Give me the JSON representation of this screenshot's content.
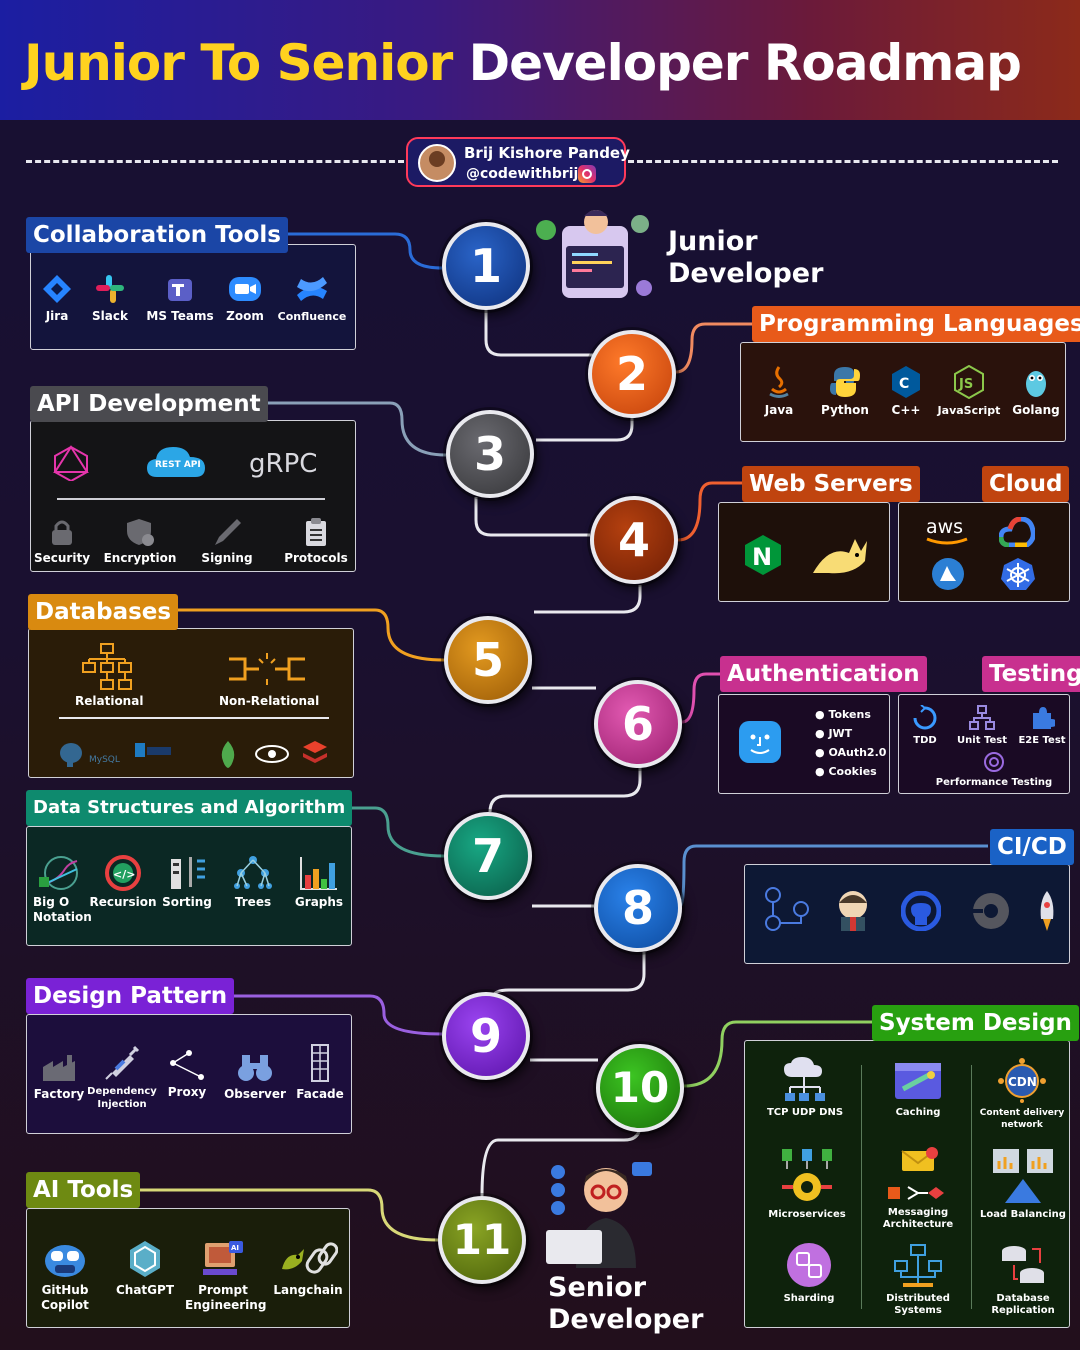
{
  "title": {
    "part1": "Junior To Senior",
    "part2": "Developer Roadmap"
  },
  "author": {
    "name": "Brij Kishore Pandey",
    "handle": "@codewithbrij"
  },
  "roles": {
    "junior": [
      "Junior",
      "Developer"
    ],
    "senior": [
      "Senior",
      "Developer"
    ]
  },
  "steps": [
    "1",
    "2",
    "3",
    "4",
    "5",
    "6",
    "7",
    "8",
    "9",
    "10",
    "11"
  ],
  "colors": {
    "collab": "#1b46a6",
    "prog": "#e85a1a",
    "api": "#4a4a4f",
    "web": "#c0440f",
    "db": "#d98a10",
    "auth": "#c8308f",
    "dsa": "#0e8a6e",
    "cicd": "#1a62c6",
    "design": "#7a22d6",
    "system": "#28a010",
    "ai": "#6e8a12"
  },
  "sections": {
    "collaboration": {
      "title": "Collaboration Tools",
      "items": [
        "Jira",
        "Slack",
        "MS Teams",
        "Zoom",
        "Confluence"
      ]
    },
    "programming": {
      "title": "Programming Languages",
      "items": [
        "Java",
        "Python",
        "C++",
        "JavaScript",
        "Golang"
      ],
      "icon_text": {
        "cpp": "C",
        "js": "JS"
      }
    },
    "api": {
      "title": "API Development",
      "top": [
        "REST API",
        "gRPC"
      ],
      "items": [
        "Security",
        "Encryption",
        "Signing",
        "Protocols"
      ]
    },
    "web_servers": {
      "title": "Web Servers",
      "icon_text": "N"
    },
    "cloud": {
      "title": "Cloud",
      "icon_text": "aws"
    },
    "databases": {
      "title": "Databases",
      "groups": [
        "Relational",
        "Non-Relational"
      ],
      "logo_text": "MySQL"
    },
    "authentication": {
      "title": "Authentication",
      "items": [
        "Tokens",
        "JWT",
        "OAuth2.0",
        "Cookies"
      ]
    },
    "testing": {
      "title": "Testing",
      "items": [
        "TDD",
        "Unit Test",
        "E2E Test",
        "Performance Testing"
      ]
    },
    "dsa": {
      "title": "Data Structures and Algorithm",
      "items": [
        "Big O\nNotation",
        "Recursion",
        "Sorting",
        "Trees",
        "Graphs"
      ],
      "icon_text": "</>"
    },
    "cicd": {
      "title": "CI/CD"
    },
    "design_pattern": {
      "title": "Design Pattern",
      "items": [
        "Factory",
        "Dependency\nInjection",
        "Proxy",
        "Observer",
        "Facade"
      ]
    },
    "system_design": {
      "title": "System Design",
      "items": [
        "TCP UDP DNS",
        "Caching",
        "Content delivery\nnetwork",
        "Microservices",
        "Messaging\nArchitecture",
        "Load Balancing",
        "Sharding",
        "Distributed\nSystems",
        "Database\nReplication"
      ],
      "icon_text": "CDN"
    },
    "ai_tools": {
      "title": "AI Tools",
      "items": [
        "GitHub\nCopilot",
        "ChatGPT",
        "Prompt\nEngineering",
        "Langchain"
      ],
      "icon_text": "AI"
    }
  }
}
